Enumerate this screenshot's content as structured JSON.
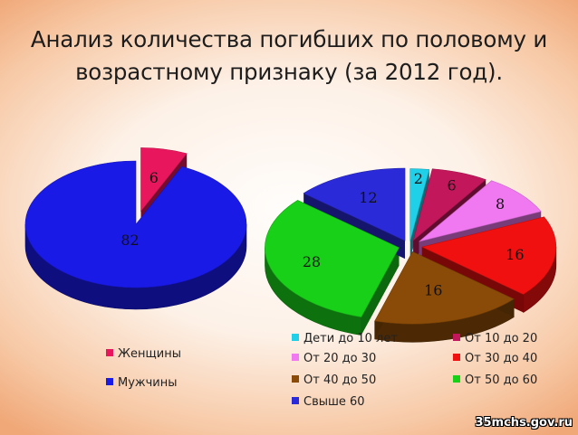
{
  "title_line1": "Анализ количества погибших по половому и",
  "title_line2": "возрастному признаку (за 2012 год).",
  "watermark": "35mchs.gov.ru",
  "chart_data": [
    {
      "type": "pie",
      "title": "",
      "legend_position": "bottom",
      "slices": [
        {
          "name": "Женщины",
          "value": 6,
          "color": "#e8175d"
        },
        {
          "name": "Мужчины",
          "value": 82,
          "color": "#1a1ae6"
        }
      ]
    },
    {
      "type": "pie",
      "title": "",
      "legend_position": "bottom",
      "slices": [
        {
          "name": "Дети до 10 лет",
          "value": 2,
          "color": "#1fd0e8"
        },
        {
          "name": "От 10 до 20",
          "value": 6,
          "color": "#c2185b"
        },
        {
          "name": "От 20 до 30",
          "value": 8,
          "color": "#f078f0"
        },
        {
          "name": "От 30 до 40",
          "value": 16,
          "color": "#f01010"
        },
        {
          "name": "От 40 до 50",
          "value": 16,
          "color": "#8a4b08"
        },
        {
          "name": "От 50 до 60",
          "value": 28,
          "color": "#18d018"
        },
        {
          "name": "Свыше 60",
          "value": 12,
          "color": "#2a2ad8"
        }
      ]
    }
  ]
}
